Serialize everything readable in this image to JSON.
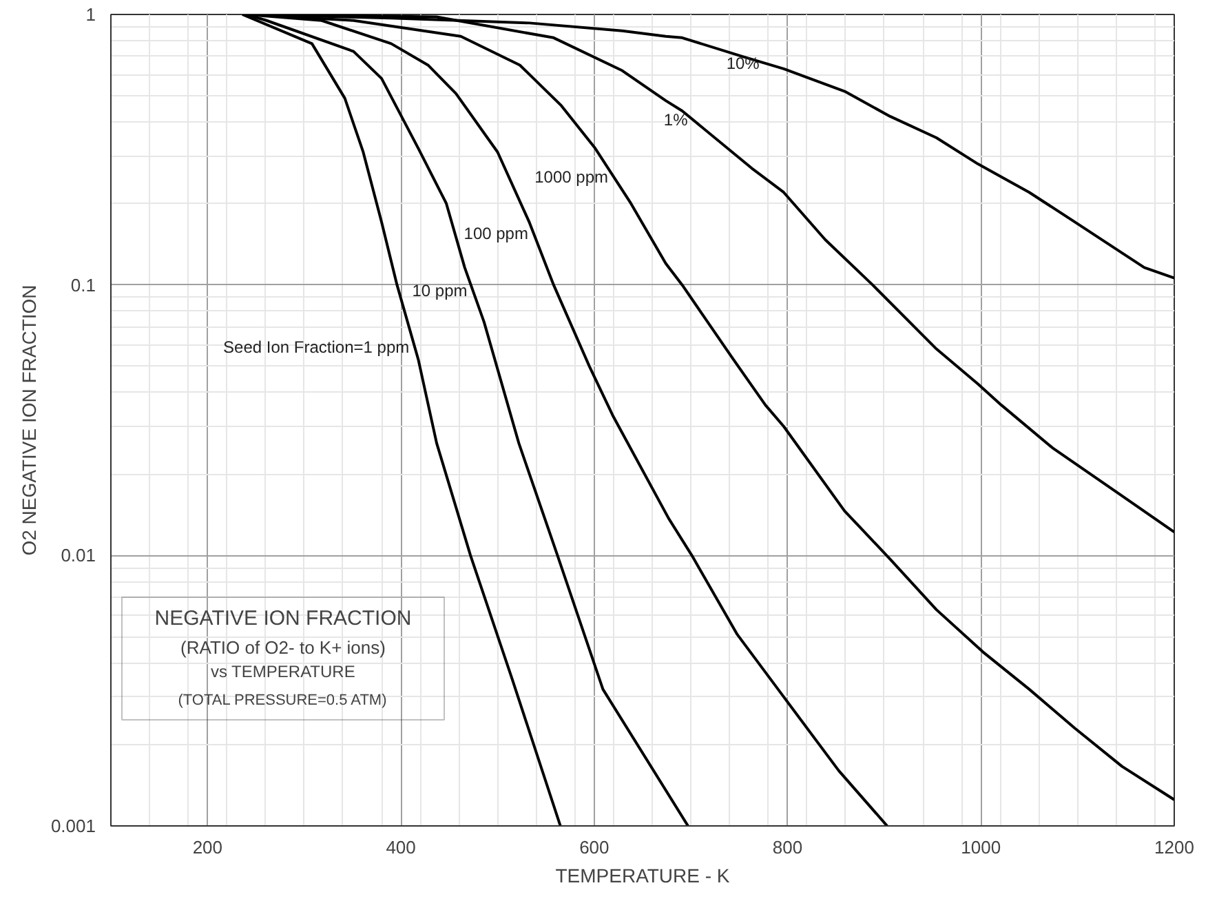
{
  "chart_data": {
    "type": "line",
    "xlabel": "TEMPERATURE - K",
    "ylabel": "O2 NEGATIVE ION FRACTION",
    "log": "y",
    "grid": true,
    "xlim": [
      100,
      1200
    ],
    "ylim": [
      0.001,
      1
    ],
    "xticks": [
      200,
      400,
      600,
      800,
      1000,
      1200
    ],
    "yticks": [
      0.001,
      0.01,
      0.1,
      1
    ],
    "series": [
      {
        "name": "Seed Ion Fraction=1 ppm",
        "color": "#000000",
        "x": [
          236,
          308,
          342,
          361,
          380,
          396,
          418,
          437,
          472,
          515,
          565
        ],
        "values": [
          1,
          0.78,
          0.49,
          0.31,
          0.171,
          0.1,
          0.053,
          0.026,
          0.01,
          0.0035,
          0.001
        ]
      },
      {
        "name": "10 ppm",
        "color": "#000000",
        "x": [
          240,
          261,
          351,
          380,
          418,
          447,
          466,
          486,
          522,
          562,
          609,
          697
        ],
        "values": [
          1,
          0.95,
          0.73,
          0.58,
          0.32,
          0.2,
          0.116,
          0.073,
          0.026,
          0.01,
          0.0032,
          0.001
        ]
      },
      {
        "name": "100 ppm",
        "color": "#000000",
        "x": [
          240,
          318,
          390,
          428,
          457,
          500,
          533,
          558,
          595,
          619,
          677,
          701,
          748,
          796,
          853,
          903
        ],
        "values": [
          1,
          0.95,
          0.78,
          0.65,
          0.51,
          0.31,
          0.17,
          0.1,
          0.05,
          0.033,
          0.0137,
          0.01,
          0.0051,
          0.003,
          0.0016,
          0.001
        ]
      },
      {
        "name": "1000 ppm",
        "color": "#000000",
        "x": [
          240,
          351,
          462,
          523,
          566,
          601,
          638,
          674,
          691,
          744,
          777,
          796,
          859,
          906,
          954,
          1002,
          1050,
          1097,
          1146,
          1200
        ],
        "values": [
          1,
          0.95,
          0.83,
          0.65,
          0.46,
          0.32,
          0.2,
          0.12,
          0.1,
          0.053,
          0.036,
          0.03,
          0.0146,
          0.0097,
          0.0063,
          0.0044,
          0.0032,
          0.0023,
          0.00166,
          0.00125
        ]
      },
      {
        "name": "1%",
        "color": "#000000",
        "x": [
          240,
          437,
          558,
          629,
          674,
          691,
          763,
          796,
          839,
          888,
          954,
          997,
          1021,
          1074,
          1146,
          1200
        ],
        "values": [
          1,
          0.98,
          0.82,
          0.62,
          0.48,
          0.44,
          0.27,
          0.22,
          0.147,
          0.1,
          0.058,
          0.043,
          0.036,
          0.025,
          0.0166,
          0.0122
        ]
      },
      {
        "name": "10%",
        "color": "#000000",
        "x": [
          240,
          390,
          533,
          629,
          674,
          691,
          753,
          796,
          859,
          906,
          954,
          997,
          1050,
          1097,
          1169,
          1200
        ],
        "values": [
          1,
          0.97,
          0.93,
          0.87,
          0.83,
          0.82,
          0.7,
          0.63,
          0.52,
          0.42,
          0.35,
          0.28,
          0.22,
          0.171,
          0.116,
          0.106
        ]
      }
    ],
    "annotations": [
      "NEGATIVE ION FRACTION",
      "(RATIO of O2- to K+ ions)",
      "vs TEMPERATURE",
      "(TOTAL PRESSURE=0.5 ATM)"
    ]
  }
}
